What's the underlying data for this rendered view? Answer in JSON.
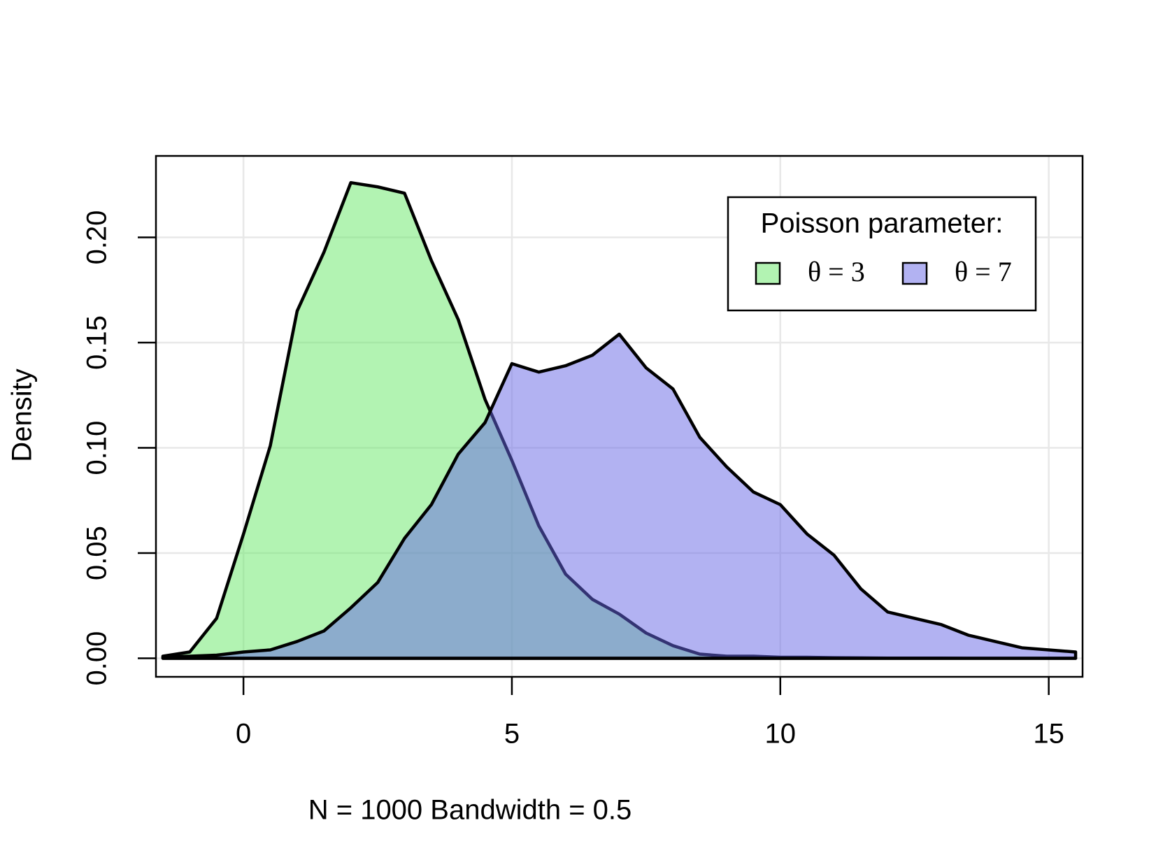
{
  "chart_data": {
    "type": "area",
    "xlabel": "N = 1000   Bandwidth = 0.5",
    "ylabel": "Density",
    "x": [
      -1.5,
      -1,
      -0.5,
      0,
      0.5,
      1,
      1.5,
      2,
      2.5,
      3,
      3.5,
      4,
      4.5,
      5,
      5.5,
      6,
      6.5,
      7,
      7.5,
      8,
      8.5,
      9,
      9.5,
      10,
      10.5,
      11,
      11.5,
      12,
      12.5,
      13,
      13.5,
      14,
      14.5,
      15,
      15.5
    ],
    "series": [
      {
        "name": "θ = 3",
        "color": "#66e866",
        "values": [
          0.001,
          0.003,
          0.019,
          0.059,
          0.101,
          0.165,
          0.193,
          0.226,
          0.224,
          0.221,
          0.189,
          0.161,
          0.123,
          0.094,
          0.063,
          0.04,
          0.028,
          0.021,
          0.012,
          0.006,
          0.002,
          0.001,
          0.001,
          0.0005,
          0.0005,
          0.0003,
          0.0002,
          0.0001,
          0.0001,
          0.0001,
          0,
          0,
          0,
          0,
          0
        ]
      },
      {
        "name": "θ = 7",
        "color": "#6666e6",
        "values": [
          0.0005,
          0.001,
          0.0015,
          0.003,
          0.004,
          0.008,
          0.013,
          0.024,
          0.036,
          0.057,
          0.073,
          0.097,
          0.112,
          0.14,
          0.136,
          0.139,
          0.144,
          0.154,
          0.138,
          0.128,
          0.105,
          0.091,
          0.079,
          0.073,
          0.059,
          0.049,
          0.033,
          0.022,
          0.019,
          0.016,
          0.011,
          0.008,
          0.005,
          0.004,
          0.003
        ]
      }
    ],
    "legend_title": "Poisson parameter:",
    "legend_position": "top-right",
    "xlim": [
      -1.63,
      15.63
    ],
    "xticks": [
      0,
      5,
      10,
      15
    ],
    "ylim": [
      -0.0088,
      0.2387
    ],
    "yticks": [
      {
        "value": 0,
        "label": "0.00"
      },
      {
        "value": 0.05,
        "label": "0.05"
      },
      {
        "value": 0.1,
        "label": "0.10"
      },
      {
        "value": 0.15,
        "label": "0.15"
      },
      {
        "value": 0.2,
        "label": "0.20"
      }
    ],
    "grid": true
  }
}
